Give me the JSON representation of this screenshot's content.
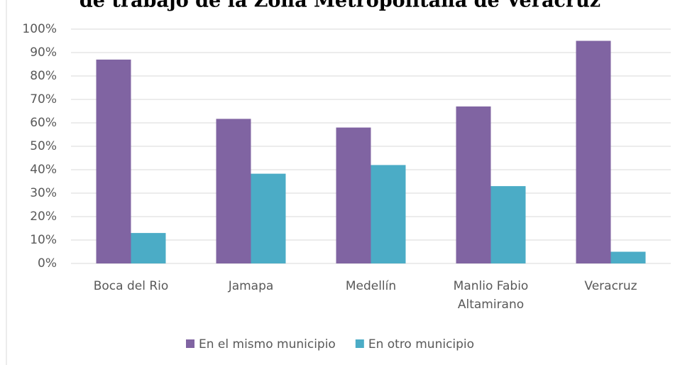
{
  "chart_data": {
    "type": "bar",
    "title": "de trabajo de la Zona Metropolitana de Veracruz",
    "categories": [
      "Boca del Rio",
      "Jamapa",
      "Medellín",
      "Manlio Fabio Altamirano",
      "Veracruz"
    ],
    "series": [
      {
        "name": "En el mismo municipio",
        "color": "#8064a2",
        "values": [
          87,
          61.7,
          58,
          67,
          95
        ]
      },
      {
        "name": "En otro municipio",
        "color": "#4bacc6",
        "values": [
          13,
          38.3,
          42,
          33,
          5
        ]
      }
    ],
    "ylim": [
      0,
      100
    ],
    "yticks": [
      {
        "value": 0,
        "label": "0%"
      },
      {
        "value": 10,
        "label": "10%"
      },
      {
        "value": 20,
        "label": "20%"
      },
      {
        "value": 30,
        "label": "30%"
      },
      {
        "value": 40,
        "label": "40%"
      },
      {
        "value": 50,
        "label": "50%"
      },
      {
        "value": 60,
        "label": "60%"
      },
      {
        "value": 70,
        "label": "70%"
      },
      {
        "value": 80,
        "label": "80%"
      },
      {
        "value": 90,
        "label": "90%"
      },
      {
        "value": 100,
        "label": "100%"
      }
    ],
    "grid": true,
    "legend": "bottom"
  }
}
